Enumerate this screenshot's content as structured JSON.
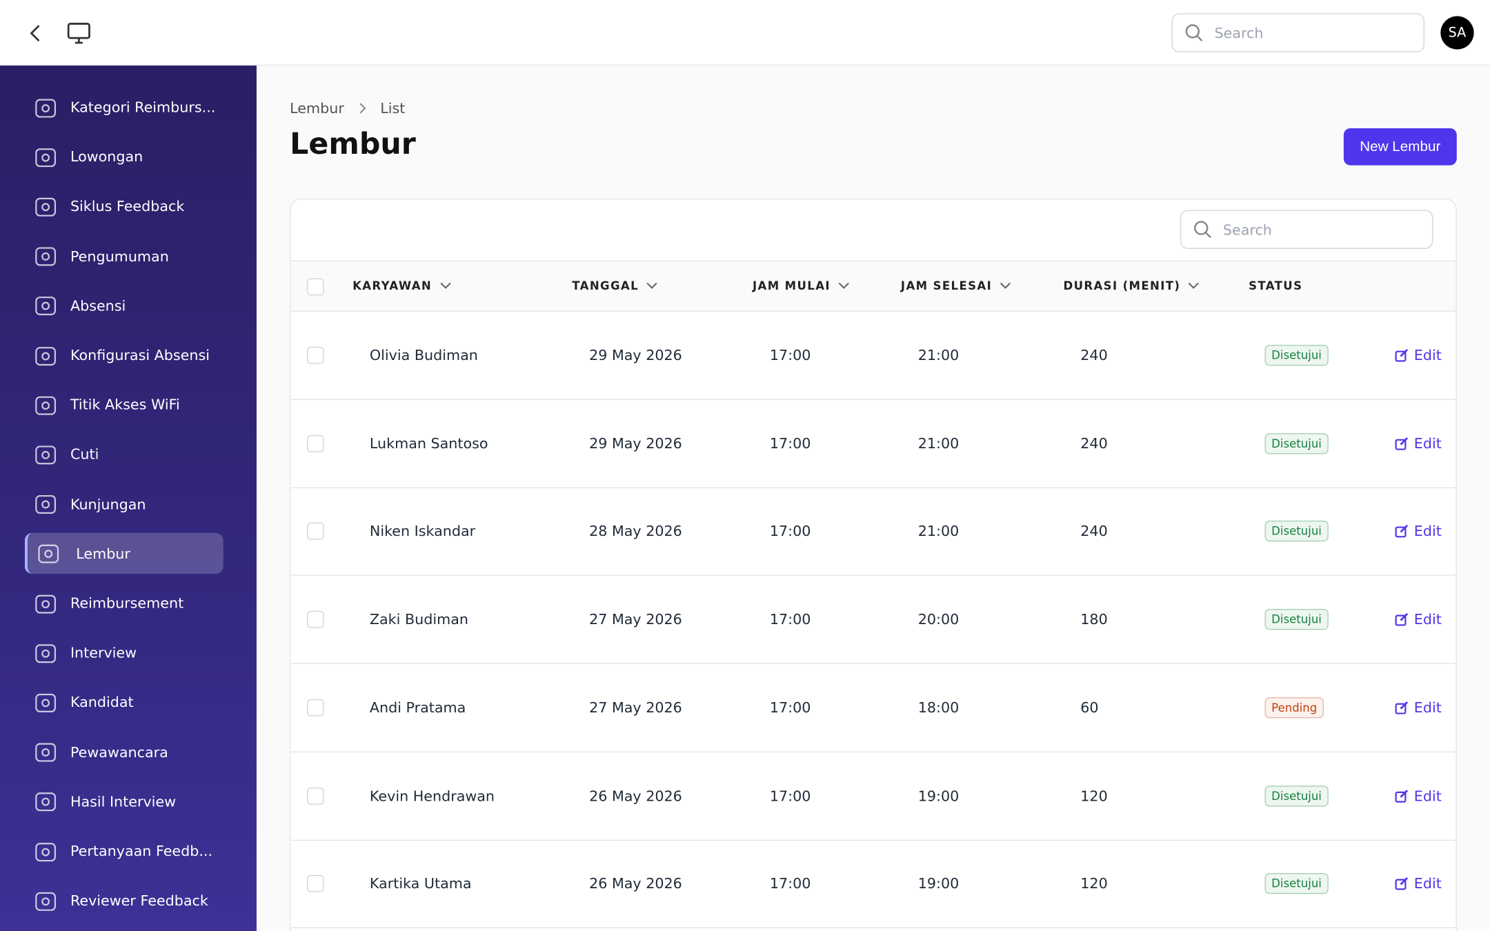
{
  "header": {
    "search_placeholder": "Search",
    "avatar": "SA"
  },
  "sidebar": {
    "items": [
      {
        "label": "Kategori Reimburs..."
      },
      {
        "label": "Lowongan"
      },
      {
        "label": "Siklus Feedback"
      },
      {
        "label": "Pengumuman"
      },
      {
        "label": "Absensi"
      },
      {
        "label": "Konfigurasi Absensi"
      },
      {
        "label": "Titik Akses WiFi"
      },
      {
        "label": "Cuti"
      },
      {
        "label": "Kunjungan"
      },
      {
        "label": "Lembur",
        "active": true
      },
      {
        "label": "Reimbursement"
      },
      {
        "label": "Interview"
      },
      {
        "label": "Kandidat"
      },
      {
        "label": "Pewawancara"
      },
      {
        "label": "Hasil Interview"
      },
      {
        "label": "Pertanyaan Feedb..."
      },
      {
        "label": "Reviewer Feedback"
      }
    ]
  },
  "breadcrumb": [
    "Lembur",
    "List"
  ],
  "title": "Lembur",
  "new_button": "New Lembur",
  "table": {
    "search_placeholder": "Search",
    "columns": [
      "KARYAWAN",
      "TANGGAL",
      "JAM MULAI",
      "JAM SELESAI",
      "DURASI (MENIT)",
      "STATUS"
    ],
    "action_label": "Edit",
    "rows": [
      {
        "karyawan": "Olivia Budiman",
        "tanggal": "29 May 2026",
        "jam_mulai": "17:00",
        "jam_selesai": "21:00",
        "durasi": 240,
        "status": "Disetujui",
        "status_color": "#15803d"
      },
      {
        "karyawan": "Lukman Santoso",
        "tanggal": "29 May 2026",
        "jam_mulai": "17:00",
        "jam_selesai": "21:00",
        "durasi": 240,
        "status": "Disetujui",
        "status_color": "#15803d"
      },
      {
        "karyawan": "Niken Iskandar",
        "tanggal": "28 May 2026",
        "jam_mulai": "17:00",
        "jam_selesai": "21:00",
        "durasi": 240,
        "status": "Disetujui",
        "status_color": "#15803d"
      },
      {
        "karyawan": "Zaki Budiman",
        "tanggal": "27 May 2026",
        "jam_mulai": "17:00",
        "jam_selesai": "20:00",
        "durasi": 180,
        "status": "Disetujui",
        "status_color": "#15803d"
      },
      {
        "karyawan": "Andi Pratama",
        "tanggal": "27 May 2026",
        "jam_mulai": "17:00",
        "jam_selesai": "18:00",
        "durasi": 60,
        "status": "Pending",
        "status_color": "#c2410c"
      },
      {
        "karyawan": "Kevin Hendrawan",
        "tanggal": "26 May 2026",
        "jam_mulai": "17:00",
        "jam_selesai": "19:00",
        "durasi": 120,
        "status": "Disetujui",
        "status_color": "#15803d"
      },
      {
        "karyawan": "Kartika Utama",
        "tanggal": "26 May 2026",
        "jam_mulai": "17:00",
        "jam_selesai": "19:00",
        "durasi": 120,
        "status": "Disetujui",
        "status_color": "#15803d"
      }
    ]
  }
}
